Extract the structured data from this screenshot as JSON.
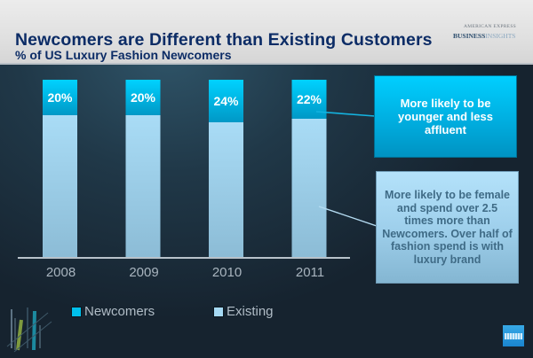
{
  "header": {
    "title": "Newcomers are Different than Existing Customers",
    "subtitle": "% of US Luxury Fashion Newcomers",
    "brand_top": "AMERICAN EXPRESS",
    "brand_bold": "BUSINESS",
    "brand_light": "INSIGHTS"
  },
  "colors": {
    "newcomers": "#00c0ec",
    "existing": "#a6d9f4",
    "background": "#1b2d3a",
    "title": "#0c2c66"
  },
  "chart_data": {
    "type": "bar",
    "stacked": true,
    "percent_stacked": true,
    "title": "% of US Luxury Fashion Newcomers",
    "xlabel": "",
    "ylabel": "",
    "ylim": [
      0,
      100
    ],
    "grid": false,
    "categories": [
      "2008",
      "2009",
      "2010",
      "2011"
    ],
    "series": [
      {
        "name": "Existing",
        "values": [
          80,
          80,
          76,
          78
        ],
        "color": "#a6d9f4"
      },
      {
        "name": "Newcomers",
        "values": [
          20,
          20,
          24,
          22
        ],
        "color": "#00c0ec"
      }
    ],
    "data_labels": [
      "20%",
      "20%",
      "24%",
      "22%"
    ],
    "legend": {
      "placement": "bottom",
      "entries": [
        "Newcomers",
        "Existing"
      ]
    }
  },
  "callouts": {
    "newcomers": "More likely to be younger and less affluent",
    "existing": "More likely to be female and spend over 2.5 times more than Newcomers.  Over half of fashion spend is with luxury brand"
  },
  "logos": {
    "corner_mark": "decorative-lines-icon",
    "amex": "amex-logo-icon"
  }
}
